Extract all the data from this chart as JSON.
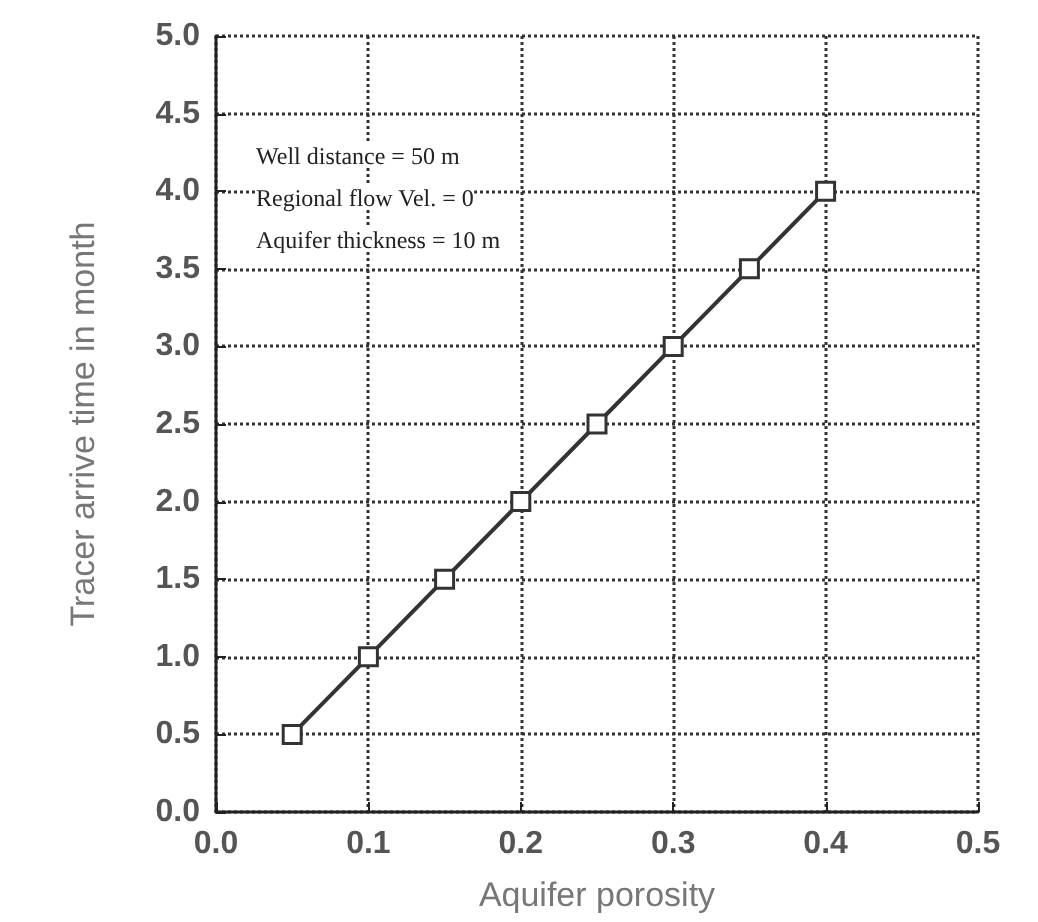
{
  "chart_data": {
    "type": "line",
    "xlabel": "Aquifer porosity",
    "ylabel": "Tracer arrive time in month",
    "x": [
      0.05,
      0.1,
      0.15,
      0.2,
      0.25,
      0.3,
      0.35,
      0.4
    ],
    "series": [
      {
        "color": "#333333",
        "values": [
          0.5,
          1.0,
          1.5,
          2.0,
          2.5,
          3.0,
          3.5,
          4.0
        ]
      }
    ],
    "xlim": [
      0,
      0.5
    ],
    "xticks": [
      {
        "value": 0,
        "label": "0.0"
      },
      0.1,
      0.2,
      0.3,
      0.4,
      0.5
    ],
    "ylim": [
      0,
      5
    ],
    "yticks": [
      {
        "value": 0,
        "label": "0.0"
      },
      0.5,
      {
        "value": 1,
        "label": "1.0"
      },
      1.5,
      {
        "value": 2,
        "label": "2.0"
      },
      2.5,
      {
        "value": 3,
        "label": "3.0"
      },
      3.5,
      {
        "value": 4,
        "label": "4.0"
      },
      4.5,
      {
        "value": 5,
        "label": "5.0"
      }
    ],
    "grid": true,
    "marker": "square",
    "line_style": "solid",
    "annotations": [
      "Well distance = 50 m",
      "Regional flow Vel. = 0",
      "Aquifer thickness = 10 m"
    ]
  }
}
